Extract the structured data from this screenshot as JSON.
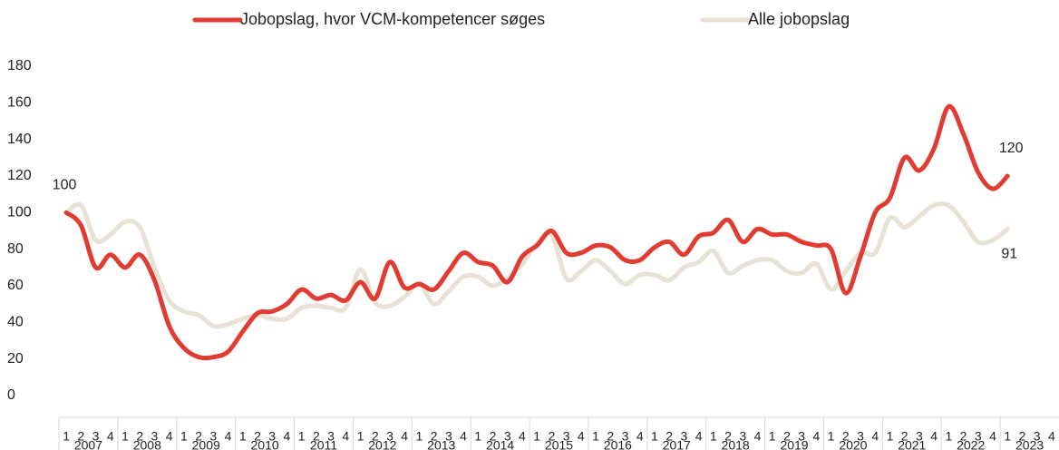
{
  "chart_data": {
    "type": "line",
    "categories": [
      "1",
      "2",
      "3",
      "4",
      "1",
      "2",
      "3",
      "4",
      "1",
      "2",
      "3",
      "4",
      "1",
      "2",
      "3",
      "4",
      "1",
      "2",
      "3",
      "4",
      "1",
      "2",
      "3",
      "4",
      "1",
      "2",
      "3",
      "4",
      "1",
      "2",
      "3",
      "4",
      "1",
      "2",
      "3",
      "4",
      "1",
      "2",
      "3",
      "4",
      "1",
      "2",
      "3",
      "4",
      "1",
      "2",
      "3",
      "4",
      "1",
      "2",
      "3",
      "4",
      "1",
      "2",
      "3",
      "4",
      "1",
      "2",
      "3",
      "4",
      "1",
      "2",
      "3",
      "4",
      "1",
      "2",
      "3",
      "4"
    ],
    "groups": [
      "2007",
      "2008",
      "2009",
      "2010",
      "2011",
      "2012",
      "2013",
      "2014",
      "2015",
      "2016",
      "2017",
      "2018",
      "2019",
      "2020",
      "2021",
      "2022",
      "2023"
    ],
    "series": [
      {
        "name": "Jobopslag, hvor VCM-kompetencer søges",
        "color": "#e03c31",
        "values": [
          100,
          93,
          70,
          77,
          70,
          77,
          63,
          38,
          26,
          21,
          21,
          24,
          35,
          45,
          46,
          50,
          58,
          53,
          55,
          52,
          62,
          53,
          73,
          59,
          61,
          58,
          68,
          78,
          73,
          71,
          62,
          76,
          82,
          90,
          78,
          78,
          82,
          81,
          74,
          74,
          81,
          84,
          77,
          87,
          89,
          96,
          84,
          91,
          88,
          88,
          84,
          82,
          80,
          56,
          76,
          100,
          108,
          130,
          123,
          135,
          158,
          143,
          122,
          113,
          120,
          null,
          null,
          null
        ]
      },
      {
        "name": "Alle jobopslag",
        "color": "#e8e2d6",
        "values": [
          100,
          104,
          85,
          88,
          95,
          92,
          70,
          52,
          46,
          44,
          38,
          39,
          42,
          44,
          42,
          42,
          48,
          49,
          48,
          48,
          69,
          51,
          49,
          54,
          61,
          50,
          57,
          65,
          65,
          60,
          64,
          72,
          83,
          88,
          64,
          68,
          74,
          68,
          61,
          66,
          66,
          63,
          70,
          73,
          79,
          67,
          71,
          74,
          74,
          68,
          67,
          72,
          58,
          68,
          78,
          78,
          97,
          92,
          98,
          104,
          104,
          95,
          84,
          85,
          91,
          null,
          null,
          null
        ]
      }
    ],
    "ylim": [
      0,
      180
    ],
    "yticks": [
      0,
      20,
      40,
      60,
      80,
      100,
      120,
      140,
      160,
      180
    ],
    "grid": false,
    "legend": "top"
  }
}
